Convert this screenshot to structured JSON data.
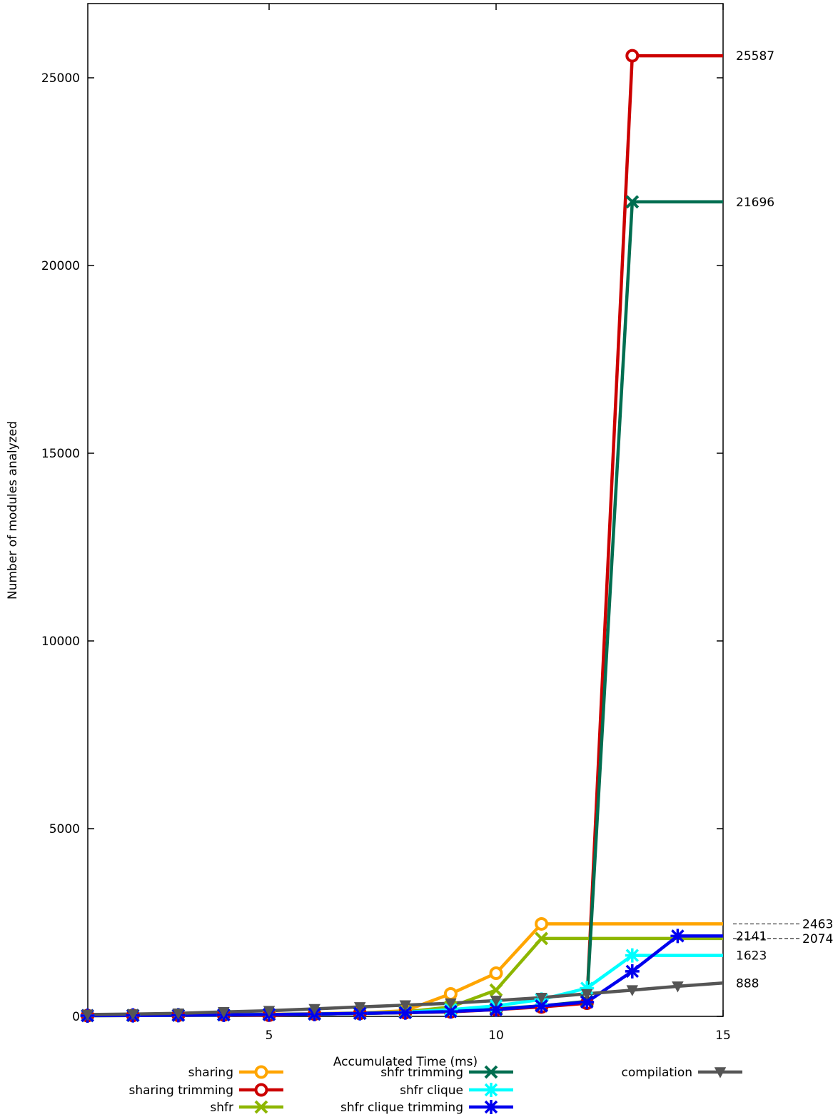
{
  "chart_data": {
    "type": "line",
    "title": "",
    "xlabel": "Accumulated Time (ms)",
    "ylabel": "Number of modules analyzed",
    "xlim": [
      0,
      15
    ],
    "ylim": [
      0,
      27000
    ],
    "x_ticks": [
      5,
      10,
      15
    ],
    "x_tick_labels": [
      "5",
      "10",
      "15"
    ],
    "y_ticks": [
      0,
      5000,
      10000,
      15000,
      20000,
      25000
    ],
    "y_tick_labels": [
      "0",
      "5000",
      "10000",
      "15000",
      "20000",
      "25000"
    ],
    "grid": false,
    "legend_position": "bottom",
    "series": [
      {
        "name": "sharing",
        "color": "#ffa500",
        "marker": "circle",
        "x": [
          1,
          2,
          3,
          4,
          5,
          6,
          7,
          8,
          9,
          10,
          11,
          15
        ],
        "y": [
          20,
          25,
          30,
          40,
          55,
          70,
          90,
          150,
          600,
          1150,
          2463,
          2463
        ]
      },
      {
        "name": "sharing trimming",
        "color": "#cc0000",
        "marker": "circle",
        "x": [
          1,
          2,
          3,
          4,
          5,
          6,
          7,
          8,
          9,
          10,
          11,
          12,
          13,
          15
        ],
        "y": [
          20,
          25,
          30,
          40,
          30,
          60,
          80,
          100,
          120,
          180,
          250,
          350,
          25587,
          25587
        ]
      },
      {
        "name": "shfr",
        "color": "#8db600",
        "marker": "x",
        "x": [
          1,
          2,
          3,
          4,
          5,
          6,
          7,
          8,
          9,
          10,
          11,
          15
        ],
        "y": [
          20,
          25,
          30,
          40,
          50,
          60,
          80,
          120,
          250,
          700,
          2074,
          2074
        ]
      },
      {
        "name": "shfr trimming",
        "color": "#006e50",
        "marker": "x",
        "x": [
          1,
          2,
          3,
          4,
          5,
          6,
          7,
          8,
          9,
          10,
          11,
          12,
          13,
          15
        ],
        "y": [
          20,
          25,
          30,
          40,
          50,
          60,
          80,
          100,
          130,
          200,
          280,
          400,
          21696,
          21696
        ]
      },
      {
        "name": "shfr clique",
        "color": "#00ffff",
        "marker": "star",
        "x": [
          1,
          2,
          3,
          4,
          5,
          6,
          7,
          8,
          9,
          10,
          11,
          12,
          13,
          15
        ],
        "y": [
          20,
          25,
          30,
          40,
          50,
          60,
          80,
          110,
          180,
          280,
          450,
          750,
          1623,
          1623
        ]
      },
      {
        "name": "shfr clique trimming",
        "color": "#0000ee",
        "marker": "star",
        "x": [
          1,
          2,
          3,
          4,
          5,
          6,
          7,
          8,
          9,
          10,
          11,
          12,
          13,
          14,
          15
        ],
        "y": [
          20,
          25,
          30,
          40,
          50,
          60,
          80,
          100,
          130,
          180,
          280,
          380,
          1200,
          2141,
          2141
        ]
      },
      {
        "name": "compilation",
        "color": "#555555",
        "marker": "triangle-down",
        "x": [
          1,
          2,
          3,
          4,
          5,
          6,
          7,
          8,
          9,
          10,
          11,
          12,
          13,
          14,
          15
        ],
        "y": [
          50,
          60,
          80,
          120,
          150,
          200,
          250,
          300,
          350,
          420,
          500,
          600,
          700,
          800,
          888
        ]
      }
    ],
    "end_labels": [
      {
        "text": "25587",
        "value": 25587,
        "leader": false
      },
      {
        "text": "21696",
        "value": 21696,
        "leader": false
      },
      {
        "text": "2463",
        "value": 2463,
        "leader": true
      },
      {
        "text": "2141",
        "value": 2141,
        "leader": false
      },
      {
        "text": "2074",
        "value": 2074,
        "leader": true
      },
      {
        "text": "1623",
        "value": 1623,
        "leader": false
      },
      {
        "text": "888",
        "value": 888,
        "leader": false
      }
    ]
  }
}
